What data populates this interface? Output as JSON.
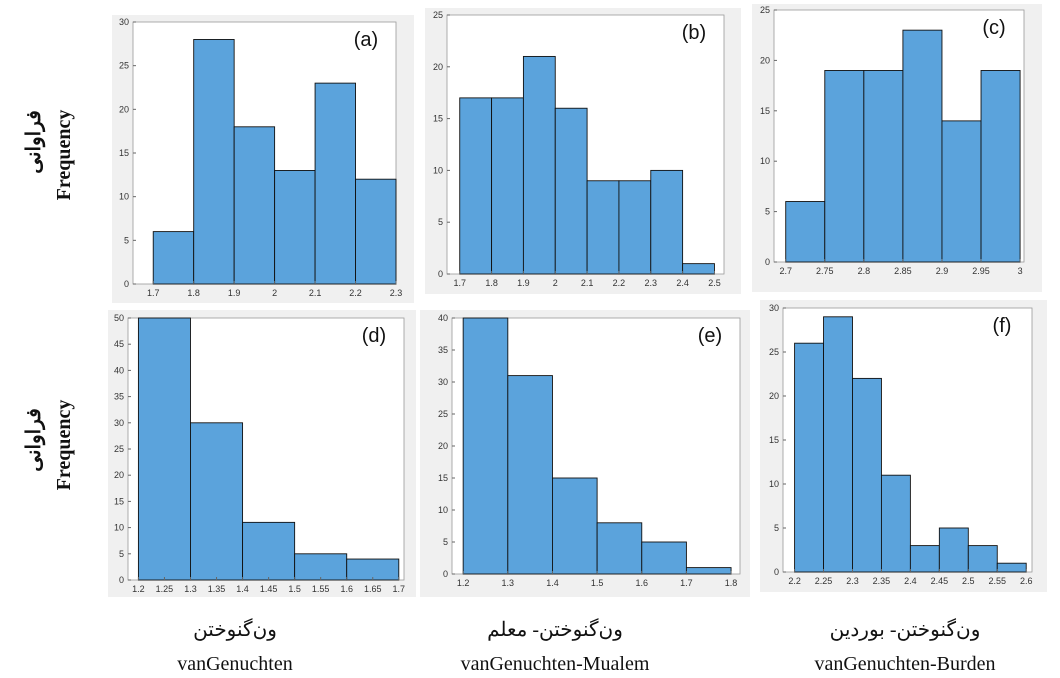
{
  "chart_data": [
    {
      "type": "histogram",
      "annotation": "(a)",
      "color": "#5ba3dc",
      "bins": [
        1.7,
        1.8,
        1.9,
        2.0,
        2.1,
        2.2,
        2.3
      ],
      "values": [
        6,
        28,
        18,
        13,
        23,
        12
      ],
      "xlim": [
        1.65,
        2.3
      ],
      "xticks": [
        1.7,
        1.8,
        1.9,
        2,
        2.1,
        2.2,
        2.3
      ],
      "ylim": [
        0,
        30
      ],
      "yticks": [
        0,
        5,
        10,
        15,
        20,
        25,
        30
      ]
    },
    {
      "type": "histogram",
      "annotation": "(b)",
      "color": "#5ba3dc",
      "bins": [
        1.7,
        1.8,
        1.9,
        2.0,
        2.1,
        2.2,
        2.3,
        2.4,
        2.5
      ],
      "values": [
        17,
        17,
        21,
        16,
        9,
        9,
        10,
        1
      ],
      "xlim": [
        1.66,
        2.53
      ],
      "xticks": [
        1.7,
        1.8,
        1.9,
        2,
        2.1,
        2.2,
        2.3,
        2.4,
        2.5
      ],
      "ylim": [
        0,
        25
      ],
      "yticks": [
        0,
        5,
        10,
        15,
        20,
        25
      ]
    },
    {
      "type": "histogram",
      "annotation": "(c)",
      "color": "#5ba3dc",
      "bins": [
        2.7,
        2.75,
        2.8,
        2.85,
        2.9,
        2.95,
        3.0
      ],
      "values": [
        6,
        19,
        19,
        23,
        14,
        19
      ],
      "xlim": [
        2.685,
        3.005
      ],
      "xticks": [
        2.7,
        2.75,
        2.8,
        2.85,
        2.9,
        2.95,
        3
      ],
      "ylim": [
        0,
        25
      ],
      "yticks": [
        0,
        5,
        10,
        15,
        20,
        25
      ]
    },
    {
      "type": "histogram",
      "annotation": "(d)",
      "color": "#5ba3dc",
      "bins": [
        1.2,
        1.3,
        1.4,
        1.5,
        1.6,
        1.7
      ],
      "values": [
        50,
        30,
        11,
        5,
        4
      ],
      "xlim": [
        1.18,
        1.71
      ],
      "xticks": [
        1.2,
        1.25,
        1.3,
        1.35,
        1.4,
        1.45,
        1.5,
        1.55,
        1.6,
        1.65,
        1.7
      ],
      "ylim": [
        0,
        50
      ],
      "yticks": [
        0,
        5,
        10,
        15,
        20,
        25,
        30,
        35,
        40,
        45,
        50
      ]
    },
    {
      "type": "histogram",
      "annotation": "(e)",
      "color": "#5ba3dc",
      "bins": [
        1.2,
        1.3,
        1.4,
        1.5,
        1.6,
        1.7,
        1.8
      ],
      "values": [
        40,
        31,
        15,
        8,
        5,
        1
      ],
      "xlim": [
        1.175,
        1.82
      ],
      "xticks": [
        1.2,
        1.3,
        1.4,
        1.5,
        1.6,
        1.7,
        1.8
      ],
      "ylim": [
        0,
        40
      ],
      "yticks": [
        0,
        5,
        10,
        15,
        20,
        25,
        30,
        35,
        40
      ]
    },
    {
      "type": "histogram",
      "annotation": "(f)",
      "color": "#5ba3dc",
      "bins": [
        2.2,
        2.25,
        2.3,
        2.35,
        2.4,
        2.45,
        2.5,
        2.55,
        2.6
      ],
      "values": [
        26,
        29,
        22,
        11,
        3,
        5,
        3,
        1
      ],
      "xlim": [
        2.18,
        2.61
      ],
      "xticks": [
        2.2,
        2.25,
        2.3,
        2.35,
        2.4,
        2.45,
        2.5,
        2.55,
        2.6
      ],
      "ylim": [
        0,
        30
      ],
      "yticks": [
        0,
        5,
        10,
        15,
        20,
        25,
        30
      ]
    }
  ],
  "row_labels": [
    {
      "fa": "فراوانی",
      "en": "Frequency"
    },
    {
      "fa": "فراوانی",
      "en": "Frequency"
    }
  ],
  "column_labels": [
    {
      "fa": "ون‌گنوختن",
      "en": "vanGenuchten"
    },
    {
      "fa": "ون‌گنوختن- معلم",
      "en": "vanGenuchten-Mualem"
    },
    {
      "fa": "ون‌گنوختن- بوردین",
      "en": "vanGenuchten-Burden"
    }
  ]
}
